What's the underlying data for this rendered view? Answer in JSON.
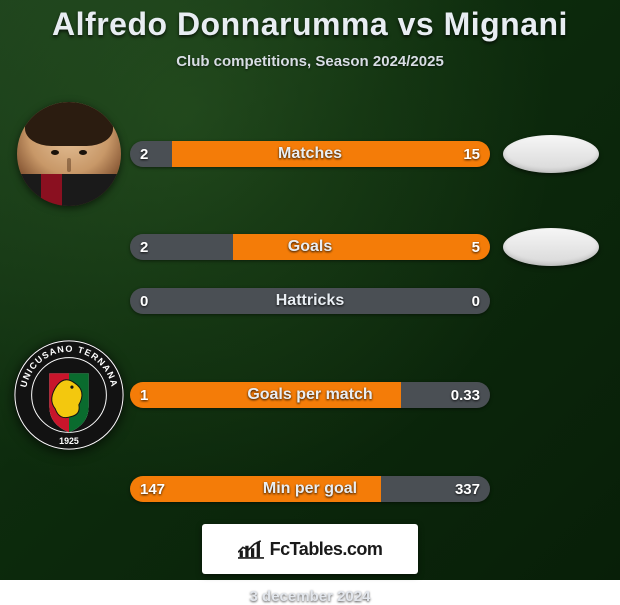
{
  "title": "Alfredo Donnarumma vs Mignani",
  "subtitle": "Club competitions, Season 2024/2025",
  "date": "3 december 2024",
  "logo_text": "FcTables.com",
  "colors": {
    "left_segment": "#f47c08",
    "right_segment": "#4a4f54",
    "neutral_segment": "#4a4f54",
    "background_from": "#1a3d1a",
    "background_to": "#081f08",
    "text": "#e8edf2"
  },
  "rows": [
    {
      "label": "Matches",
      "left": "2",
      "right": "15",
      "left_pct": 11.8,
      "highlight": "right"
    },
    {
      "label": "Goals",
      "left": "2",
      "right": "5",
      "left_pct": 28.6,
      "highlight": "right"
    },
    {
      "label": "Hattricks",
      "left": "0",
      "right": "0",
      "left_pct": 50.0,
      "highlight": "none"
    },
    {
      "label": "Goals per match",
      "left": "1",
      "right": "0.33",
      "left_pct": 75.2,
      "highlight": "left"
    },
    {
      "label": "Min per goal",
      "left": "147",
      "right": "337",
      "left_pct": 69.6,
      "highlight": "left"
    }
  ],
  "left_images": {
    "0": "player-face",
    "3": "club-crest"
  },
  "right_images": {
    "0": "placeholder",
    "1": "placeholder"
  },
  "crest": {
    "ring_color": "#121212",
    "arc_text": "UNICUSANO TERNANA",
    "year": "1925",
    "stripe_left": "#c8152b",
    "stripe_right": "#0a6b2e",
    "dragon_color": "#f3c80e"
  }
}
